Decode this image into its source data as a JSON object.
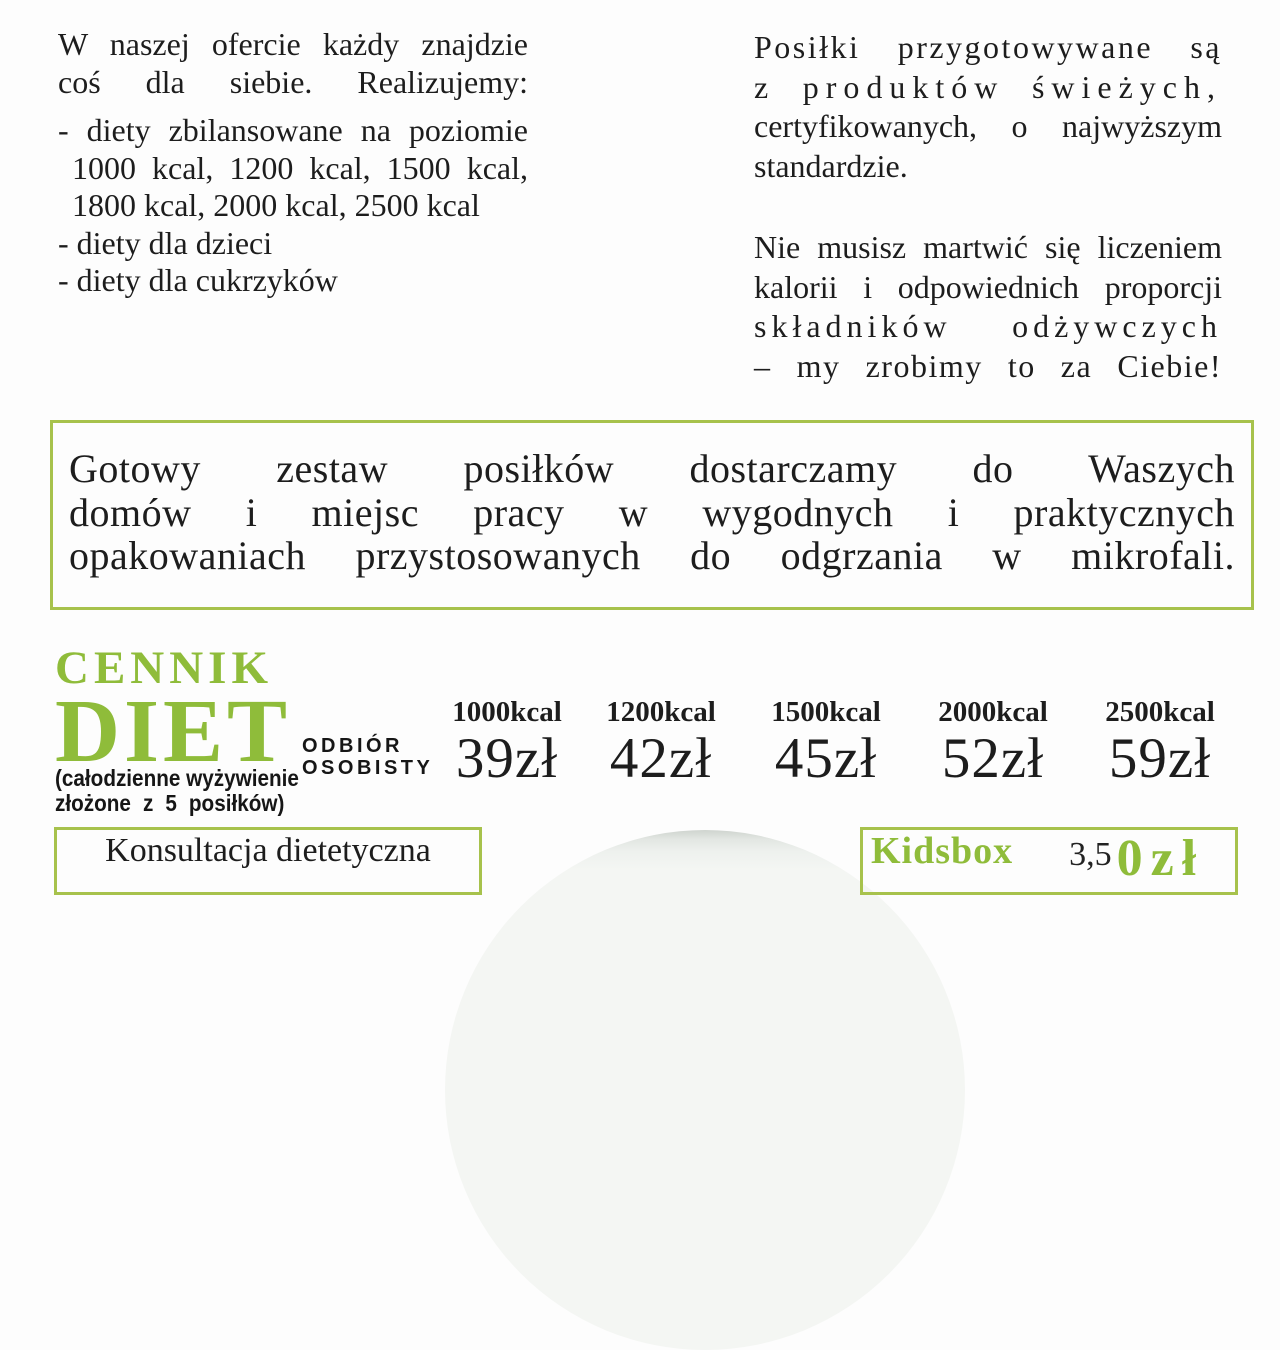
{
  "colors": {
    "accent_green": "#8fbc3a",
    "border_green": "#a7c24c",
    "ink": "#1d1d1d",
    "plate_gray": "#dde1dd"
  },
  "intro_left": {
    "line1": "W naszej ofercie każdy znajdzie",
    "line2": "coś dla siebie. Realizujemy:",
    "line3": "- diety zbilansowane na poziomie",
    "line4": "1000 kcal, 1200 kcal, 1500 kcal,",
    "line5": "1800 kcal, 2000 kcal, 2500 kcal",
    "line6": "- diety dla dzieci",
    "line7": "- diety dla cukrzyków"
  },
  "intro_right": {
    "line1": "Posiłki przygotowywane są",
    "line2": "z produktów świeżych,",
    "line3": "certyfikowanych, o najwyższym",
    "line4": "standardzie.",
    "line5": "Nie musisz martwić się liczeniem",
    "line6": "kalorii i odpowiednich proporcji",
    "line7": "składników odżywczych",
    "line8": "– my zrobimy to za Ciebie!"
  },
  "delivery_box": {
    "line1": "Gotowy zestaw posiłków dostarczamy do Waszych",
    "line2": "domów i miejsc pracy w wygodnych i praktycznych",
    "line3": "opakowaniach przystosowanych do odgrzania w mikrofali."
  },
  "price_list": {
    "title_line1": "CENNIK",
    "title_line2": "DIET",
    "subtitle_line1": "(całodzienne wyżywienie",
    "subtitle_line2": "złożone z 5 posiłków)",
    "pickup_line1": "ODBIÓR",
    "pickup_line2": "OSOBISTY",
    "columns": [
      {
        "kcal": "1000kcal",
        "price": "39zł"
      },
      {
        "kcal": "1200kcal",
        "price": "42zł"
      },
      {
        "kcal": "1500kcal",
        "price": "45zł"
      },
      {
        "kcal": "2000kcal",
        "price": "52zł"
      },
      {
        "kcal": "2500kcal",
        "price": "59zł"
      }
    ]
  },
  "consultation_box": {
    "label": "Konsultacja dietetyczna"
  },
  "kidsbox": {
    "label": "Kidsbox",
    "price_prefix": "3,5",
    "price_suffix": "0zł"
  }
}
